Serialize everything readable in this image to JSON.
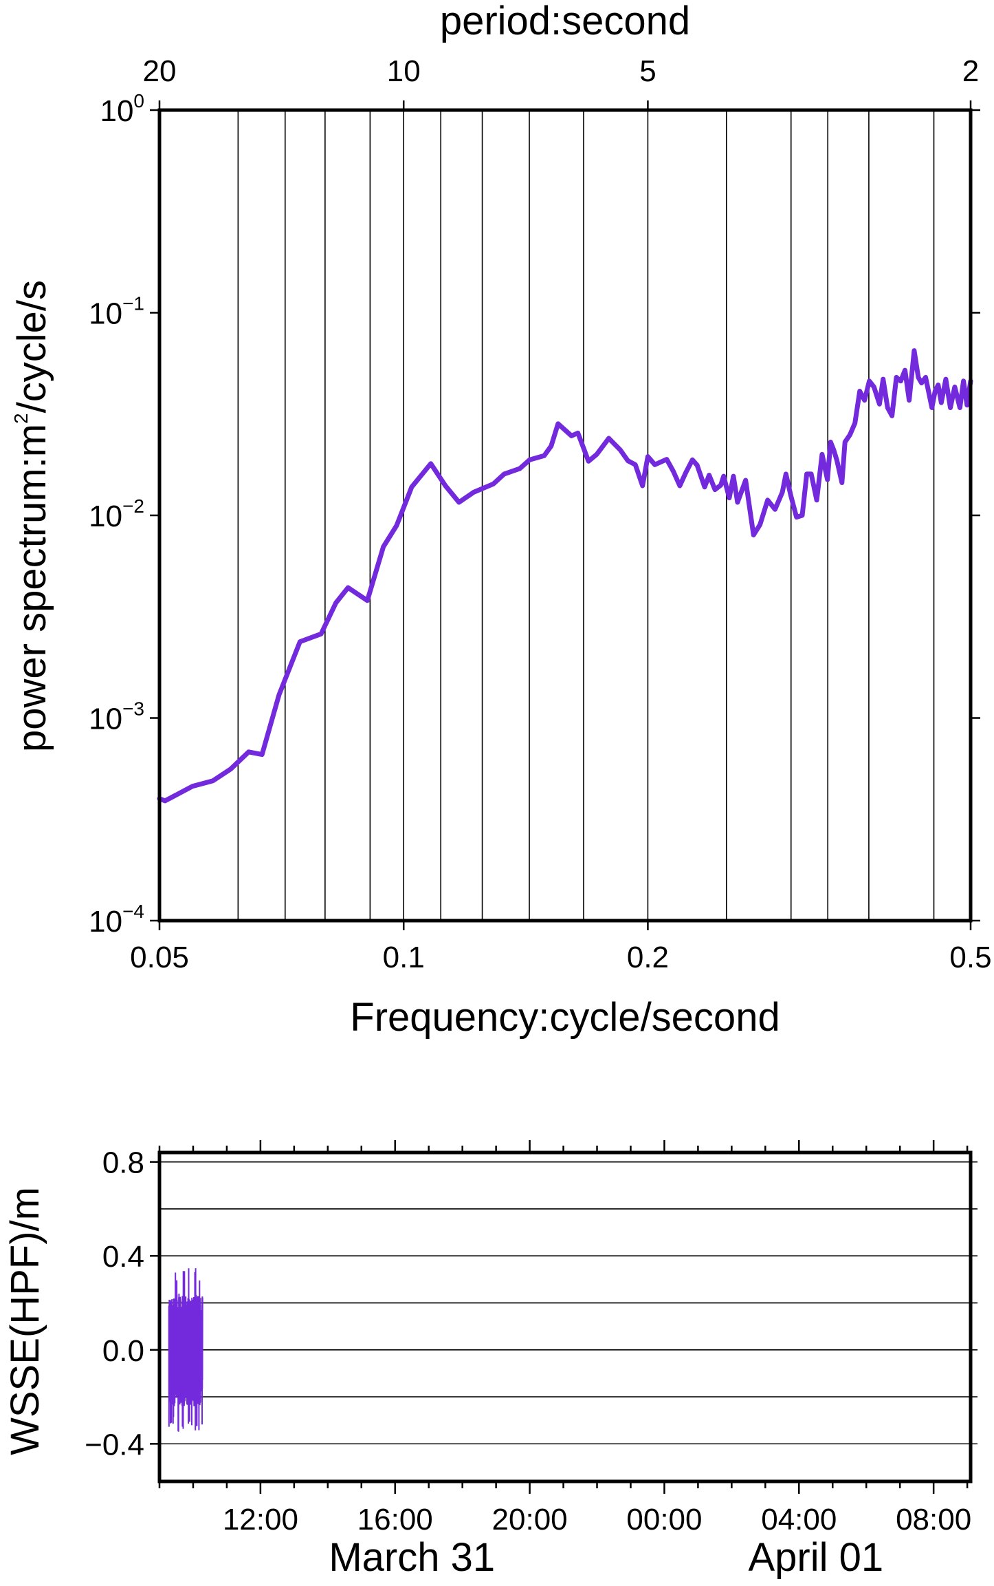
{
  "chart_data": [
    {
      "type": "line",
      "xlabel": "Frequency:cycle/second",
      "ylabel_parts": [
        "power spectrum:m",
        "2",
        "/cycle/s"
      ],
      "top_axis_label": "period:second",
      "x_scale": "log",
      "y_scale": "log",
      "xlim": [
        0.05,
        0.5
      ],
      "ylim": [
        0.0001,
        1
      ],
      "x_ticks": [
        {
          "value": 0.05,
          "label": "0.05"
        },
        {
          "value": 0.1,
          "label": "0.1"
        },
        {
          "value": 0.2,
          "label": "0.2"
        },
        {
          "value": 0.5,
          "label": "0.5"
        }
      ],
      "top_ticks": [
        {
          "value": 20,
          "label": "20"
        },
        {
          "value": 10,
          "label": "10"
        },
        {
          "value": 5,
          "label": "5"
        },
        {
          "value": 2,
          "label": "2"
        }
      ],
      "y_ticks": [
        {
          "value": 1,
          "base": "10",
          "exp": "0"
        },
        {
          "value": 0.1,
          "base": "10",
          "exp": "−1"
        },
        {
          "value": 0.01,
          "base": "10",
          "exp": "−2"
        },
        {
          "value": 0.001,
          "base": "10",
          "exp": "−3"
        },
        {
          "value": 0.0001,
          "base": "10",
          "exp": "−4"
        }
      ],
      "vertical_gridlines_period_s": [
        16,
        14,
        12.5,
        11,
        9,
        8,
        7,
        6,
        4,
        3.33,
        3,
        2.67,
        2.22
      ],
      "line_color": "#7329dc",
      "x": [
        0.05,
        0.0508,
        0.0549,
        0.0582,
        0.0612,
        0.0644,
        0.0669,
        0.0702,
        0.0745,
        0.0791,
        0.0825,
        0.0854,
        0.0902,
        0.0944,
        0.098,
        0.1023,
        0.108,
        0.1126,
        0.117,
        0.122,
        0.129,
        0.133,
        0.139,
        0.143,
        0.149,
        0.152,
        0.155,
        0.161,
        0.164,
        0.169,
        0.173,
        0.179,
        0.185,
        0.189,
        0.193,
        0.197,
        0.2,
        0.204,
        0.211,
        0.215,
        0.219,
        0.223,
        0.227,
        0.23,
        0.235,
        0.238,
        0.242,
        0.246,
        0.248,
        0.252,
        0.255,
        0.258,
        0.264,
        0.27,
        0.275,
        0.281,
        0.287,
        0.293,
        0.296,
        0.3,
        0.305,
        0.31,
        0.314,
        0.318,
        0.323,
        0.328,
        0.333,
        0.336,
        0.339,
        0.342,
        0.347,
        0.35,
        0.355,
        0.36,
        0.365,
        0.37,
        0.375,
        0.38,
        0.386,
        0.39,
        0.395,
        0.4,
        0.405,
        0.41,
        0.415,
        0.42,
        0.426,
        0.431,
        0.435,
        0.44,
        0.448,
        0.452,
        0.456,
        0.46,
        0.466,
        0.472,
        0.478,
        0.485,
        0.49,
        0.495,
        0.5
      ],
      "y": [
        0.0004,
        0.00039,
        0.00046,
        0.00049,
        0.00056,
        0.00068,
        0.00066,
        0.0013,
        0.00238,
        0.0026,
        0.0037,
        0.0044,
        0.0038,
        0.007,
        0.0089,
        0.0138,
        0.018,
        0.014,
        0.0116,
        0.013,
        0.0143,
        0.016,
        0.017,
        0.0188,
        0.0197,
        0.022,
        0.0283,
        0.0247,
        0.0255,
        0.0185,
        0.02,
        0.024,
        0.021,
        0.0186,
        0.0178,
        0.014,
        0.0195,
        0.0178,
        0.0189,
        0.0165,
        0.014,
        0.0164,
        0.0188,
        0.0177,
        0.0138,
        0.0158,
        0.0134,
        0.0141,
        0.0156,
        0.0122,
        0.0156,
        0.0116,
        0.0149,
        0.008,
        0.009,
        0.0119,
        0.0107,
        0.013,
        0.016,
        0.0126,
        0.0098,
        0.01,
        0.016,
        0.016,
        0.0119,
        0.02,
        0.015,
        0.023,
        0.021,
        0.0187,
        0.0145,
        0.023,
        0.025,
        0.0285,
        0.041,
        0.037,
        0.046,
        0.043,
        0.0354,
        0.047,
        0.034,
        0.031,
        0.048,
        0.046,
        0.052,
        0.037,
        0.065,
        0.048,
        0.045,
        0.048,
        0.034,
        0.041,
        0.044,
        0.036,
        0.047,
        0.034,
        0.043,
        0.034,
        0.046,
        0.035,
        0.046
      ]
    },
    {
      "type": "line",
      "ylabel": "WSSE(HPF)/m",
      "ylim": [
        -0.56,
        0.84
      ],
      "y_ticks": [
        {
          "value": 0.8,
          "label": "0.8"
        },
        {
          "value": 0.4,
          "label": "0.4"
        },
        {
          "value": 0.0,
          "label": "0.0"
        },
        {
          "value": -0.4,
          "label": "−0.4"
        }
      ],
      "y_gridlines": [
        0.8,
        0.6,
        0.4,
        0.2,
        0.0,
        -0.2,
        -0.4
      ],
      "xlim_hours": [
        9,
        33.1
      ],
      "x_ticks": [
        {
          "hour": 12,
          "label": "12:00"
        },
        {
          "hour": 16,
          "label": "16:00"
        },
        {
          "hour": 20,
          "label": "20:00"
        },
        {
          "hour": 24,
          "label": "00:00"
        },
        {
          "hour": 28,
          "label": "04:00"
        },
        {
          "hour": 32,
          "label": "08:00"
        }
      ],
      "date_labels": [
        {
          "hour": 16.5,
          "label": "March 31"
        },
        {
          "hour": 28.5,
          "label": "April 01"
        }
      ],
      "line_color": "#7329dc",
      "signal": {
        "start_hour": 9.28,
        "end_hour": 10.28,
        "max": 0.35,
        "min": -0.35,
        "envelope_pos": 0.24,
        "envelope_neg": -0.24
      }
    }
  ]
}
